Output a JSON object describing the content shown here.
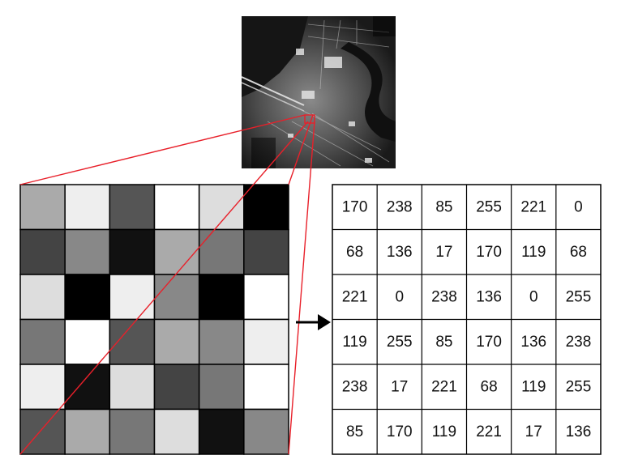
{
  "satellite_photo": {
    "icon": "satellite-image"
  },
  "pixel_grid": {
    "rows": 6,
    "cols": 6,
    "values": [
      [
        170,
        238,
        85,
        255,
        221,
        0
      ],
      [
        68,
        136,
        17,
        170,
        119,
        68
      ],
      [
        221,
        0,
        238,
        136,
        0,
        255
      ],
      [
        119,
        255,
        85,
        170,
        136,
        238
      ],
      [
        238,
        17,
        221,
        68,
        119,
        255
      ],
      [
        85,
        170,
        119,
        221,
        17,
        136
      ]
    ]
  },
  "value_table": {
    "cells": [
      [
        "170",
        "238",
        "85",
        "255",
        "221",
        "0"
      ],
      [
        "68",
        "136",
        "17",
        "170",
        "119",
        "68"
      ],
      [
        "221",
        "0",
        "238",
        "136",
        "0",
        "255"
      ],
      [
        "119",
        "255",
        "85",
        "170",
        "136",
        "238"
      ],
      [
        "238",
        "17",
        "221",
        "68",
        "119",
        "255"
      ],
      [
        "85",
        "170",
        "119",
        "221",
        "17",
        "136"
      ]
    ]
  },
  "arrow": {
    "icon": "right-arrow-icon"
  },
  "colors": {
    "zoom_lines": "#e8202a",
    "grid_border": "#000000",
    "table_border": "#000000"
  }
}
